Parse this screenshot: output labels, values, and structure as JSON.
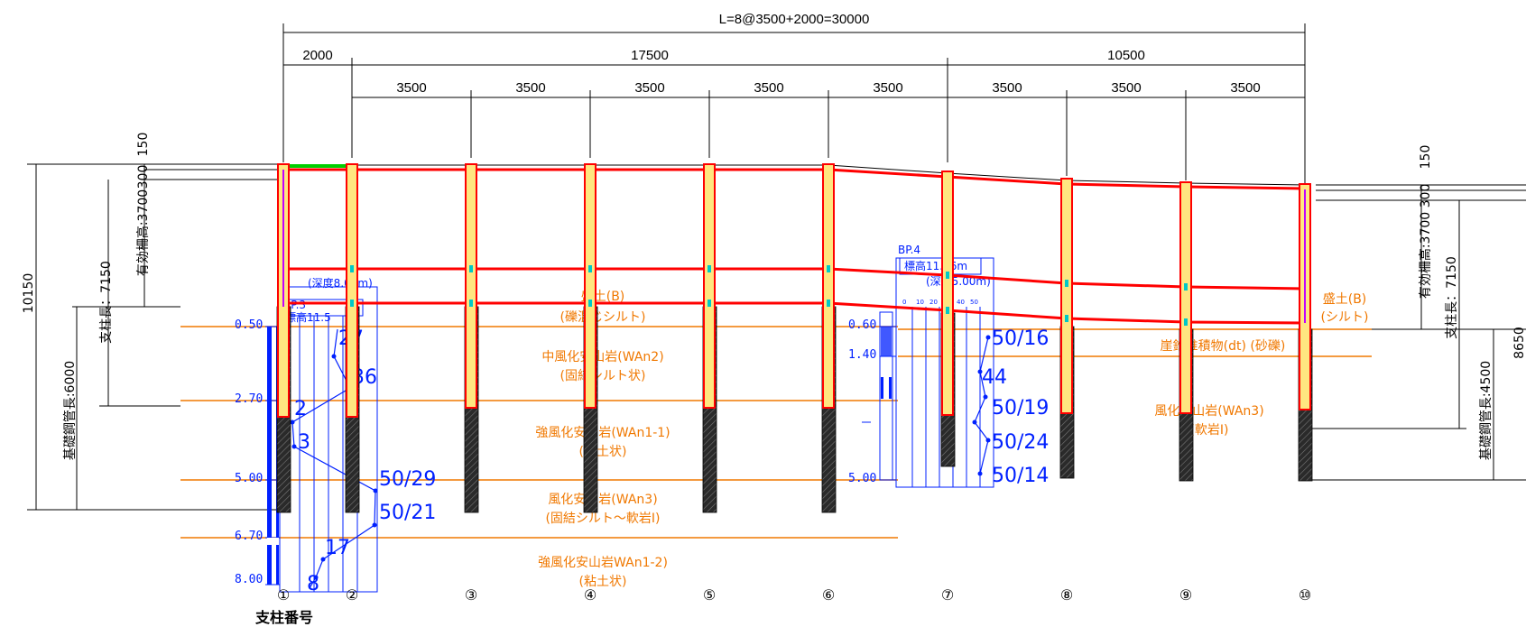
{
  "dimensions": {
    "overall": "L=8@3500+2000=30000",
    "span_groups": [
      "2000",
      "17500",
      "10500"
    ],
    "spans": [
      "3500",
      "3500",
      "3500",
      "3500",
      "3500",
      "3500",
      "3500",
      "3500"
    ],
    "left_vertical": {
      "top_150": "150",
      "top_300": "300",
      "fence_height": "有効柵高:3700",
      "post_length": "支柱長：7150",
      "total_height": "10150",
      "pipe_length": "基礎鋼管長:6000"
    },
    "right_vertical": {
      "top_150": "150",
      "top_300": "300",
      "fence_height": "有効柵高:3700",
      "post_length": "支柱長：7150",
      "pipe_length": "基礎鋼管長:4500",
      "total_partial": "8650"
    }
  },
  "layers": {
    "left": [
      {
        "name": "盛土(B)",
        "sub": "(礫混じシルト)"
      },
      {
        "name": "中風化安山岩(WAn2)",
        "sub": "(固結シルト状)"
      },
      {
        "name": "強風化安山岩(WAn1-1)",
        "sub": "(粘土状)"
      },
      {
        "name": "風化安山岩(WAn3)",
        "sub": "(固結シルト～軟岩I)"
      },
      {
        "name": "強風化安山岩WAn1-2)",
        "sub": "(粘土状)"
      }
    ],
    "right": [
      {
        "name": "盛土(B)",
        "sub": "(シルト)"
      },
      {
        "name": "崖錐堆積物(dt) (砂礫)",
        "sub": ""
      },
      {
        "name": "風化安山岩(WAn3)",
        "sub": "(軟岩I)"
      }
    ]
  },
  "boreholes": [
    {
      "name": "BP.3",
      "elevation": "標高11.5",
      "depth": "(深度8.00m)",
      "layer_depths": [
        "0.50",
        "2.70",
        "5.00",
        "6.70",
        "8.00"
      ],
      "n_values": [
        "27",
        "36",
        "2",
        "3",
        "50/29",
        "50/21",
        "17",
        "8"
      ]
    },
    {
      "name": "BP.4",
      "elevation": "標高11.56m",
      "depth": "(深度5.00m)",
      "layer_depths": [
        "0.60",
        "1.40",
        "5.00"
      ],
      "n_values": [
        "50/16",
        "44",
        "50/19",
        "50/24",
        "50/14"
      ],
      "scale_ticks": [
        "0",
        "10",
        "20",
        "30",
        "40",
        "50"
      ]
    }
  ],
  "posts": {
    "title": "支柱番号",
    "numbers": [
      "①",
      "②",
      "③",
      "④",
      "⑤",
      "⑥",
      "⑦",
      "⑧",
      "⑨",
      "⑩"
    ]
  },
  "colors": {
    "frame": "#ff0000",
    "layer_line": "#f07800",
    "borehole": "#0020ff",
    "pipe": "#1a1a1a",
    "post_fill": "#ffe680",
    "accent": "#00d000"
  }
}
